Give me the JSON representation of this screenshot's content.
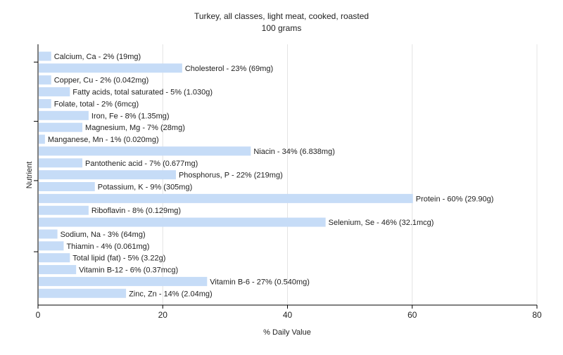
{
  "chart_data": {
    "type": "bar",
    "orientation": "horizontal",
    "title": "Turkey, all classes, light meat, cooked, roasted",
    "subtitle": "100 grams",
    "xlabel": "% Daily Value",
    "ylabel": "Nutrient",
    "xlim": [
      0,
      80
    ],
    "xticks": [
      "0",
      "20",
      "40",
      "60",
      "80"
    ],
    "grid": true,
    "bar_color": "#c6dcf7",
    "categories": [
      "Calcium, Ca",
      "Cholesterol",
      "Copper, Cu",
      "Fatty acids, total saturated",
      "Folate, total",
      "Iron, Fe",
      "Magnesium, Mg",
      "Manganese, Mn",
      "Niacin",
      "Pantothenic acid",
      "Phosphorus, P",
      "Potassium, K",
      "Protein",
      "Riboflavin",
      "Selenium, Se",
      "Sodium, Na",
      "Thiamin",
      "Total lipid (fat)",
      "Vitamin B-12",
      "Vitamin B-6",
      "Zinc, Zn"
    ],
    "values": [
      2,
      23,
      2,
      5,
      2,
      8,
      7,
      1,
      34,
      7,
      22,
      9,
      60,
      8,
      46,
      3,
      4,
      5,
      6,
      27,
      14
    ],
    "labels": [
      "Calcium, Ca - 2% (19mg)",
      "Cholesterol - 23% (69mg)",
      "Copper, Cu - 2% (0.042mg)",
      "Fatty acids, total saturated - 5% (1.030g)",
      "Folate, total - 2% (6mcg)",
      "Iron, Fe - 8% (1.35mg)",
      "Magnesium, Mg - 7% (28mg)",
      "Manganese, Mn - 1% (0.020mg)",
      "Niacin - 34% (6.838mg)",
      "Pantothenic acid - 7% (0.677mg)",
      "Phosphorus, P - 22% (219mg)",
      "Potassium, K - 9% (305mg)",
      "Protein - 60% (29.90g)",
      "Riboflavin - 8% (0.129mg)",
      "Selenium, Se - 46% (32.1mcg)",
      "Sodium, Na - 3% (64mg)",
      "Thiamin - 4% (0.061mg)",
      "Total lipid (fat) - 5% (3.22g)",
      "Vitamin B-12 - 6% (0.37mcg)",
      "Vitamin B-6 - 27% (0.540mg)",
      "Zinc, Zn - 14% (2.04mg)"
    ]
  }
}
